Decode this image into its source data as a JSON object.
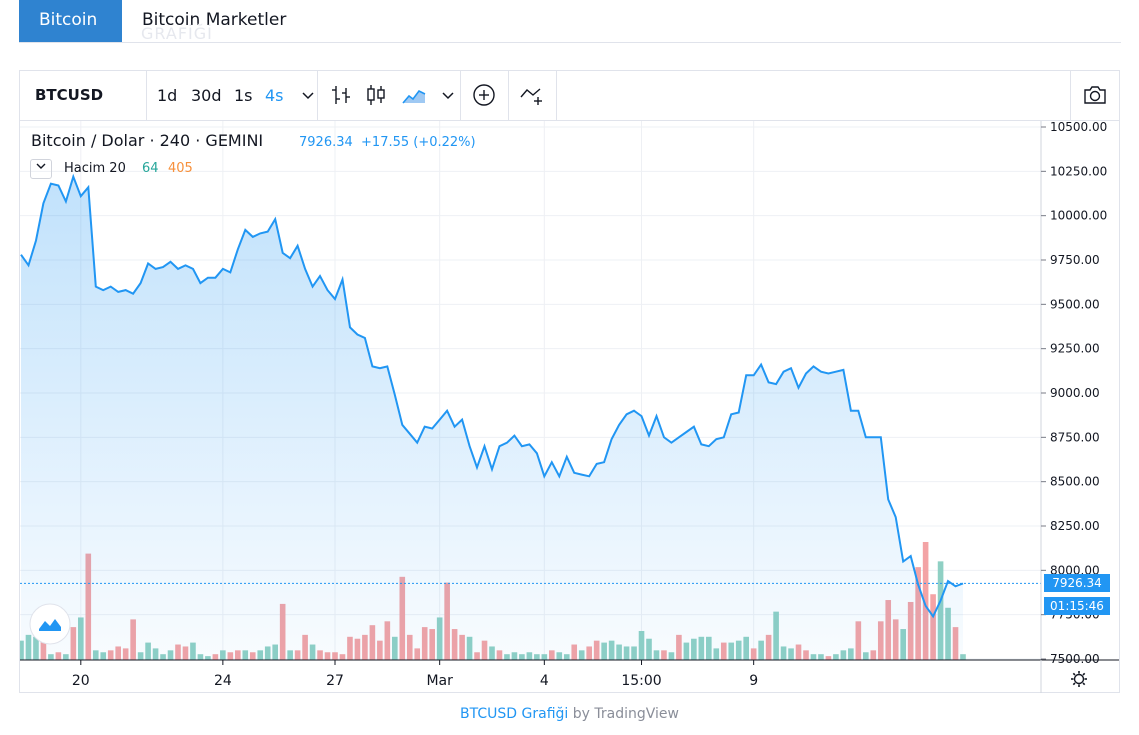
{
  "tabs": [
    {
      "label": "Bitcoin",
      "active": true
    },
    {
      "label": "Bitcoin Marketler",
      "active": false
    }
  ],
  "tab_ghost": "GRAFİĞİ",
  "toolbar": {
    "symbol": "BTCUSD",
    "intervals": [
      "1d",
      "30d",
      "1s",
      "4s"
    ],
    "selected_interval": "4s",
    "icons": [
      "chevron-down-icon",
      "bars-icon",
      "candles-icon",
      "area-chart-icon",
      "chevron-down-icon",
      "add-indicator-icon",
      "compare-icon",
      "camera-icon"
    ]
  },
  "legend": {
    "title": "Bitcoin / Dolar · 240 · GEMINI",
    "price": "7926.34",
    "change": "+17.55 (+0.22%)",
    "volume_name": "Hacim 20",
    "volume_value_a": "64",
    "volume_value_b": "405"
  },
  "price_label": "7926.34",
  "countdown_label": "01:15:46",
  "footer": {
    "link": "BTCUSD Grafiği",
    "by": "by TradingView"
  },
  "colors": {
    "line": "#2196f3",
    "up_volume": "#8fd0c4",
    "down_volume": "#f3a3a5",
    "accent": "#2f83d0"
  },
  "chart_data": {
    "type": "area",
    "title": "Bitcoin / Dolar · 240 · GEMINI",
    "y_axis": {
      "ticks": [
        "10500.00",
        "10250.00",
        "10000.00",
        "9750.00",
        "9500.00",
        "9250.00",
        "9000.00",
        "8750.00",
        "8500.00",
        "8250.00",
        "8000.00",
        "7750.00",
        "7500.00"
      ],
      "range": [
        7500,
        10500
      ],
      "position": "right"
    },
    "x_axis": {
      "ticks": [
        "20",
        "24",
        "27",
        "Mar",
        "4",
        "15:00",
        "9"
      ]
    },
    "grid": true,
    "current_price": 7926.34,
    "price_series": [
      9780,
      9720,
      9860,
      10070,
      10180,
      10170,
      10080,
      10220,
      10110,
      10160,
      9600,
      9580,
      9600,
      9570,
      9580,
      9560,
      9620,
      9730,
      9700,
      9710,
      9740,
      9700,
      9720,
      9700,
      9620,
      9650,
      9650,
      9700,
      9680,
      9810,
      9920,
      9880,
      9900,
      9910,
      9980,
      9790,
      9760,
      9830,
      9700,
      9600,
      9660,
      9580,
      9530,
      9640,
      9370,
      9330,
      9310,
      9150,
      9140,
      9150,
      8990,
      8820,
      8770,
      8720,
      8810,
      8800,
      8850,
      8900,
      8810,
      8850,
      8700,
      8580,
      8700,
      8570,
      8700,
      8720,
      8760,
      8700,
      8710,
      8660,
      8530,
      8610,
      8530,
      8640,
      8550,
      8540,
      8530,
      8600,
      8610,
      8740,
      8820,
      8880,
      8900,
      8870,
      8760,
      8870,
      8750,
      8720,
      8750,
      8780,
      8810,
      8710,
      8700,
      8740,
      8750,
      8880,
      8890,
      9100,
      9100,
      9160,
      9060,
      9050,
      9120,
      9140,
      9030,
      9110,
      9150,
      9120,
      9110,
      9120,
      9130,
      8900,
      8900,
      8750,
      8750,
      8750,
      8400,
      8300,
      8050,
      8080,
      7920,
      7800,
      7740,
      7830,
      7940,
      7910,
      7926
    ],
    "volume_series": [
      {
        "v": 1000,
        "up": true
      },
      {
        "v": 1300,
        "up": true
      },
      {
        "v": 1200,
        "up": true
      },
      {
        "v": 1100,
        "up": false
      },
      {
        "v": 300,
        "up": true
      },
      {
        "v": 400,
        "up": false
      },
      {
        "v": 300,
        "up": true
      },
      {
        "v": 1700,
        "up": false
      },
      {
        "v": 2200,
        "up": true
      },
      {
        "v": 5500,
        "up": false
      },
      {
        "v": 500,
        "up": true
      },
      {
        "v": 400,
        "up": true
      },
      {
        "v": 500,
        "up": false
      },
      {
        "v": 700,
        "up": false
      },
      {
        "v": 600,
        "up": false
      },
      {
        "v": 2100,
        "up": false
      },
      {
        "v": 400,
        "up": true
      },
      {
        "v": 900,
        "up": true
      },
      {
        "v": 600,
        "up": true
      },
      {
        "v": 300,
        "up": true
      },
      {
        "v": 500,
        "up": true
      },
      {
        "v": 800,
        "up": false
      },
      {
        "v": 700,
        "up": false
      },
      {
        "v": 900,
        "up": true
      },
      {
        "v": 300,
        "up": true
      },
      {
        "v": 200,
        "up": true
      },
      {
        "v": 300,
        "up": false
      },
      {
        "v": 500,
        "up": true
      },
      {
        "v": 400,
        "up": false
      },
      {
        "v": 500,
        "up": false
      },
      {
        "v": 500,
        "up": true
      },
      {
        "v": 400,
        "up": false
      },
      {
        "v": 500,
        "up": true
      },
      {
        "v": 700,
        "up": true
      },
      {
        "v": 800,
        "up": true
      },
      {
        "v": 2900,
        "up": false
      },
      {
        "v": 500,
        "up": true
      },
      {
        "v": 500,
        "up": false
      },
      {
        "v": 1300,
        "up": false
      },
      {
        "v": 800,
        "up": true
      },
      {
        "v": 500,
        "up": false
      },
      {
        "v": 400,
        "up": false
      },
      {
        "v": 400,
        "up": false
      },
      {
        "v": 300,
        "up": false
      },
      {
        "v": 1200,
        "up": false
      },
      {
        "v": 1100,
        "up": false
      },
      {
        "v": 1300,
        "up": false
      },
      {
        "v": 1800,
        "up": false
      },
      {
        "v": 1000,
        "up": false
      },
      {
        "v": 2000,
        "up": false
      },
      {
        "v": 1200,
        "up": true
      },
      {
        "v": 4300,
        "up": false
      },
      {
        "v": 1300,
        "up": false
      },
      {
        "v": 600,
        "up": false
      },
      {
        "v": 1700,
        "up": false
      },
      {
        "v": 1600,
        "up": false
      },
      {
        "v": 2200,
        "up": true
      },
      {
        "v": 4000,
        "up": false
      },
      {
        "v": 1600,
        "up": false
      },
      {
        "v": 1300,
        "up": false
      },
      {
        "v": 1200,
        "up": true
      },
      {
        "v": 400,
        "up": false
      },
      {
        "v": 1000,
        "up": false
      },
      {
        "v": 700,
        "up": true
      },
      {
        "v": 500,
        "up": false
      },
      {
        "v": 300,
        "up": true
      },
      {
        "v": 400,
        "up": true
      },
      {
        "v": 300,
        "up": true
      },
      {
        "v": 400,
        "up": true
      },
      {
        "v": 300,
        "up": true
      },
      {
        "v": 300,
        "up": true
      },
      {
        "v": 500,
        "up": false
      },
      {
        "v": 400,
        "up": true
      },
      {
        "v": 300,
        "up": true
      },
      {
        "v": 800,
        "up": false
      },
      {
        "v": 500,
        "up": true
      },
      {
        "v": 700,
        "up": false
      },
      {
        "v": 1000,
        "up": false
      },
      {
        "v": 900,
        "up": true
      },
      {
        "v": 1000,
        "up": true
      },
      {
        "v": 800,
        "up": true
      },
      {
        "v": 700,
        "up": true
      },
      {
        "v": 700,
        "up": true
      },
      {
        "v": 1500,
        "up": true
      },
      {
        "v": 1100,
        "up": true
      },
      {
        "v": 500,
        "up": true
      },
      {
        "v": 500,
        "up": false
      },
      {
        "v": 400,
        "up": true
      },
      {
        "v": 1300,
        "up": false
      },
      {
        "v": 900,
        "up": true
      },
      {
        "v": 1100,
        "up": true
      },
      {
        "v": 1200,
        "up": true
      },
      {
        "v": 1200,
        "up": true
      },
      {
        "v": 600,
        "up": true
      },
      {
        "v": 900,
        "up": false
      },
      {
        "v": 900,
        "up": true
      },
      {
        "v": 1000,
        "up": true
      },
      {
        "v": 1200,
        "up": true
      },
      {
        "v": 600,
        "up": false
      },
      {
        "v": 1000,
        "up": true
      },
      {
        "v": 1300,
        "up": false
      },
      {
        "v": 2500,
        "up": true
      },
      {
        "v": 700,
        "up": true
      },
      {
        "v": 600,
        "up": true
      },
      {
        "v": 800,
        "up": false
      },
      {
        "v": 500,
        "up": false
      },
      {
        "v": 300,
        "up": true
      },
      {
        "v": 300,
        "up": true
      },
      {
        "v": 200,
        "up": false
      },
      {
        "v": 300,
        "up": true
      },
      {
        "v": 500,
        "up": true
      },
      {
        "v": 600,
        "up": true
      },
      {
        "v": 2000,
        "up": false
      },
      {
        "v": 400,
        "up": true
      },
      {
        "v": 500,
        "up": false
      },
      {
        "v": 2000,
        "up": false
      },
      {
        "v": 3100,
        "up": false
      },
      {
        "v": 2100,
        "up": false
      },
      {
        "v": 1600,
        "up": true
      },
      {
        "v": 3000,
        "up": false
      },
      {
        "v": 4800,
        "up": false
      },
      {
        "v": 6100,
        "up": false
      },
      {
        "v": 3400,
        "up": false
      },
      {
        "v": 5100,
        "up": true
      },
      {
        "v": 2700,
        "up": true
      },
      {
        "v": 1700,
        "up": false
      },
      {
        "v": 300,
        "up": true
      }
    ]
  }
}
